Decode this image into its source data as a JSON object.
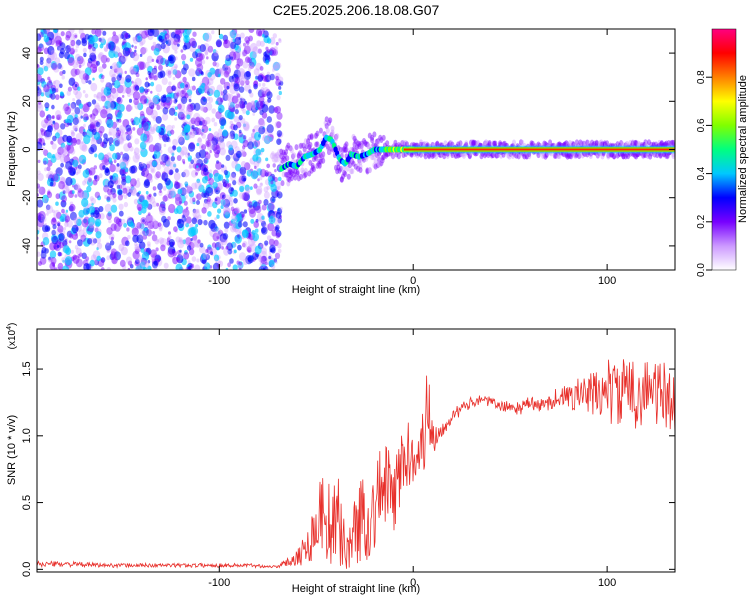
{
  "title": "C2E5.2025.206.18.08.G07",
  "chart_data": [
    {
      "type": "heatmap",
      "xlabel": "Height of straight line (km)",
      "ylabel": "Frequency (Hz)",
      "xlim": [
        -194,
        135
      ],
      "ylim": [
        -50,
        50
      ],
      "xticks": [
        -100,
        0,
        100
      ],
      "xtick_labels": [
        "-100",
        "0",
        "100"
      ],
      "yticks": [
        -40,
        -20,
        0,
        20,
        40
      ],
      "ytick_labels": [
        "-40",
        "-20",
        "0",
        "20",
        "40"
      ],
      "noise_region_x": [
        -194,
        -68
      ],
      "signal_track": {
        "x": [
          -68,
          -64,
          -60,
          -56,
          -52,
          -48,
          -45,
          -42,
          -38,
          -35,
          -32,
          -28,
          -24,
          -20,
          -15,
          -10,
          -5,
          0,
          20,
          40,
          60,
          80,
          100,
          120,
          135
        ],
        "freq": [
          -8,
          -6,
          -7,
          -3,
          -2,
          0,
          5,
          4,
          -4,
          -6,
          -2,
          -3,
          -2,
          0,
          0,
          0,
          0,
          0,
          0,
          0,
          0,
          0,
          0,
          0,
          0
        ]
      },
      "colorbar": {
        "label": "Normalized spectral amplitude",
        "range": [
          0,
          1
        ],
        "ticks": [
          0.0,
          0.2,
          0.4,
          0.6,
          0.8
        ],
        "tick_labels": [
          "0.0",
          "0.2",
          "0.4",
          "0.6",
          "0.8"
        ],
        "colors": [
          "#ffffff",
          "#cc99ff",
          "#7700ff",
          "#0000ff",
          "#00c8ff",
          "#00ff80",
          "#80ff00",
          "#ffff00",
          "#ff8000",
          "#ff0000",
          "#ff0080"
        ]
      }
    },
    {
      "type": "line",
      "xlabel": "Height of straight line (km)",
      "ylabel": "SNR (10 * v/v)",
      "y_multiplier": "(x10",
      "y_multiplier_exp": "4",
      "y_multiplier_close": ")",
      "xlim": [
        -194,
        135
      ],
      "ylim": [
        -0.02,
        1.8
      ],
      "xticks": [
        -100,
        0,
        100
      ],
      "xtick_labels": [
        "-100",
        "0",
        "100"
      ],
      "yticks": [
        0.0,
        0.5,
        1.0,
        1.5
      ],
      "ytick_labels": [
        "0.0",
        "0.5",
        "1.0",
        "1.5"
      ],
      "color": "#e8302b",
      "x": [
        -194,
        -180,
        -160,
        -140,
        -120,
        -100,
        -85,
        -72,
        -66,
        -62,
        -58,
        -54,
        -50,
        -46,
        -42,
        -38,
        -34,
        -30,
        -26,
        -22,
        -18,
        -14,
        -10,
        -6,
        -2,
        2,
        5,
        7,
        8,
        10,
        12,
        15,
        20,
        25,
        30,
        35,
        40,
        45,
        50,
        55,
        60,
        65,
        70,
        75,
        80,
        85,
        90,
        95,
        100,
        105,
        110,
        115,
        120,
        125,
        130,
        135
      ],
      "y": [
        0.04,
        0.04,
        0.03,
        0.03,
        0.03,
        0.03,
        0.03,
        0.02,
        0.04,
        0.08,
        0.12,
        0.18,
        0.35,
        0.45,
        0.3,
        0.35,
        0.12,
        0.3,
        0.4,
        0.35,
        0.55,
        0.65,
        0.5,
        0.8,
        0.85,
        0.9,
        0.95,
        1.1,
        1.3,
        1.05,
        1.0,
        1.05,
        1.15,
        1.2,
        1.25,
        1.28,
        1.25,
        1.22,
        1.22,
        1.2,
        1.25,
        1.22,
        1.25,
        1.3,
        1.28,
        1.32,
        1.3,
        1.32,
        1.35,
        1.3,
        1.35,
        1.3,
        1.35,
        1.32,
        1.3,
        1.25
      ],
      "y_amp": [
        0.02,
        0.02,
        0.015,
        0.015,
        0.015,
        0.015,
        0.015,
        0.01,
        0.03,
        0.05,
        0.1,
        0.15,
        0.25,
        0.35,
        0.3,
        0.35,
        0.12,
        0.3,
        0.35,
        0.3,
        0.35,
        0.3,
        0.3,
        0.3,
        0.25,
        0.2,
        0.25,
        0.4,
        0.45,
        0.25,
        0.1,
        0.06,
        0.05,
        0.05,
        0.04,
        0.04,
        0.04,
        0.04,
        0.04,
        0.05,
        0.05,
        0.05,
        0.06,
        0.08,
        0.1,
        0.12,
        0.15,
        0.2,
        0.25,
        0.25,
        0.25,
        0.25,
        0.25,
        0.25,
        0.25,
        0.25
      ]
    }
  ]
}
